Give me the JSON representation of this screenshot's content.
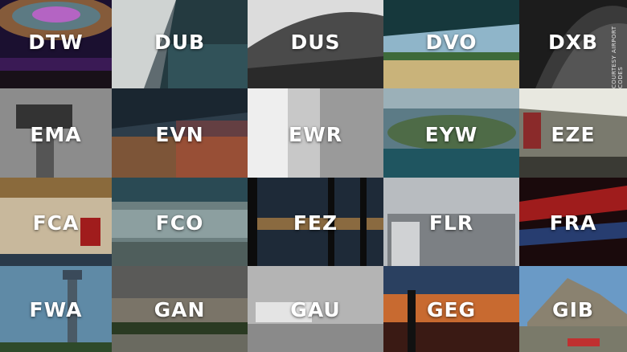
{
  "tiles": [
    {
      "code": "DTW"
    },
    {
      "code": "DUB"
    },
    {
      "code": "DUS"
    },
    {
      "code": "DVO"
    },
    {
      "code": "DXB"
    },
    {
      "code": "EMA"
    },
    {
      "code": "EVN"
    },
    {
      "code": "EWR"
    },
    {
      "code": "EYW"
    },
    {
      "code": "EZE"
    },
    {
      "code": "FCA"
    },
    {
      "code": "FCO"
    },
    {
      "code": "FEZ"
    },
    {
      "code": "FLR"
    },
    {
      "code": "FRA"
    },
    {
      "code": "FWA"
    },
    {
      "code": "GAN"
    },
    {
      "code": "GAU"
    },
    {
      "code": "GEG"
    },
    {
      "code": "GIB"
    }
  ],
  "credit": "COURTESY AIRPORT CODES"
}
